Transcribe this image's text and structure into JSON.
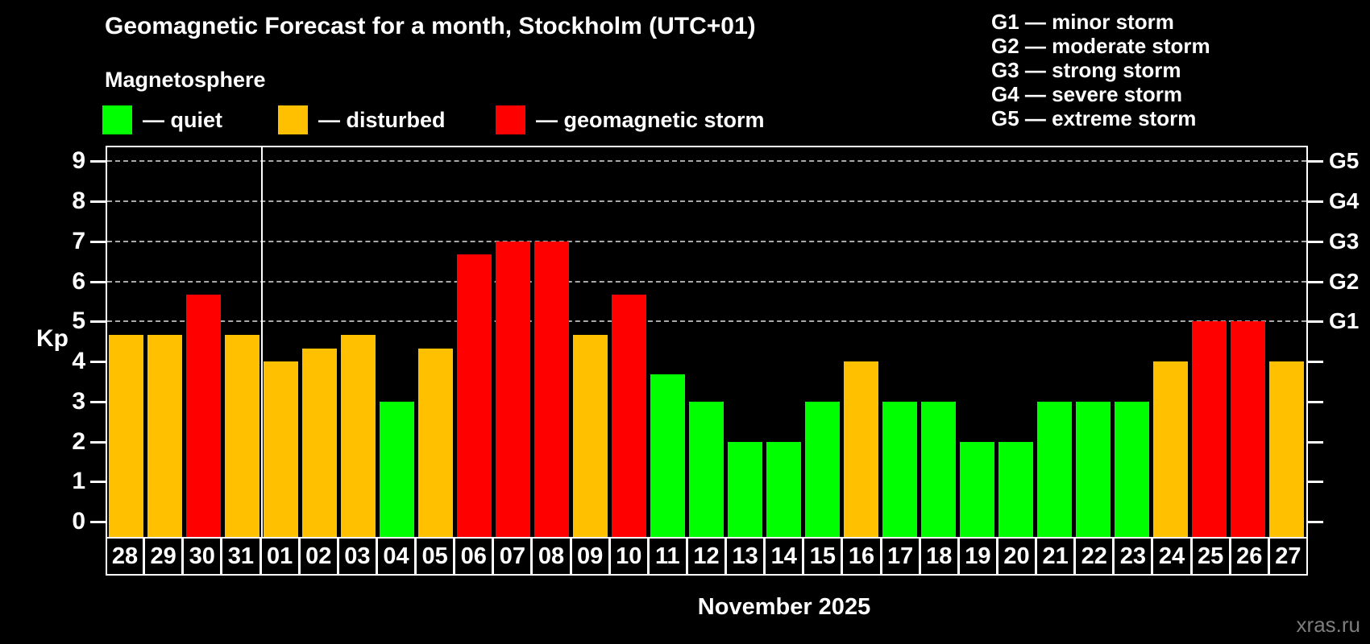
{
  "title": "Geomagnetic Forecast for a month, Stockholm (UTC+01)",
  "subtitle": "Magnetosphere",
  "legend": {
    "items": [
      {
        "key": "quiet",
        "label": "— quiet",
        "color": "#00ff00"
      },
      {
        "key": "disturbed",
        "label": "— disturbed",
        "color": "#ffc000"
      },
      {
        "key": "storm",
        "label": "— geomagnetic storm",
        "color": "#ff0000"
      }
    ]
  },
  "storm_scale_legend": [
    "G1 — minor storm",
    "G2 — moderate storm",
    "G3 — strong storm",
    "G4 — severe storm",
    "G5 — extreme storm"
  ],
  "watermark": "xras.ru",
  "chart_data": {
    "type": "bar",
    "title": "Geomagnetic Forecast for a month, Stockholm (UTC+01)",
    "xlabel": "November 2025",
    "ylabel": "Kp",
    "ylim": [
      0,
      9
    ],
    "grid": "horizontal dashed lines at Kp 5,6,7,8,9 only",
    "legend_position": "top",
    "y_ticks": [
      0,
      1,
      2,
      3,
      4,
      5,
      6,
      7,
      8,
      9
    ],
    "right_axis": [
      {
        "kp": 5,
        "label": "G1"
      },
      {
        "kp": 6,
        "label": "G2"
      },
      {
        "kp": 7,
        "label": "G3"
      },
      {
        "kp": 8,
        "label": "G4"
      },
      {
        "kp": 9,
        "label": "G5"
      }
    ],
    "categories": [
      "28",
      "29",
      "30",
      "31",
      "01",
      "02",
      "03",
      "04",
      "05",
      "06",
      "07",
      "08",
      "09",
      "10",
      "11",
      "12",
      "13",
      "14",
      "15",
      "16",
      "17",
      "18",
      "19",
      "20",
      "21",
      "22",
      "23",
      "24",
      "25",
      "26",
      "27"
    ],
    "values": [
      4.67,
      4.67,
      5.67,
      4.67,
      4,
      4.33,
      4.67,
      3,
      4.33,
      6.67,
      7,
      7,
      4.67,
      5.67,
      3.67,
      3,
      2,
      2,
      3,
      4,
      3,
      3,
      2,
      2,
      3,
      3,
      3,
      4,
      5,
      5,
      4
    ],
    "statuses": [
      "disturbed",
      "disturbed",
      "storm",
      "disturbed",
      "disturbed",
      "disturbed",
      "disturbed",
      "quiet",
      "disturbed",
      "storm",
      "storm",
      "storm",
      "disturbed",
      "storm",
      "quiet",
      "quiet",
      "quiet",
      "quiet",
      "quiet",
      "disturbed",
      "quiet",
      "quiet",
      "quiet",
      "quiet",
      "quiet",
      "quiet",
      "quiet",
      "disturbed",
      "storm",
      "storm",
      "disturbed"
    ],
    "month_separator_after_index": 3
  }
}
